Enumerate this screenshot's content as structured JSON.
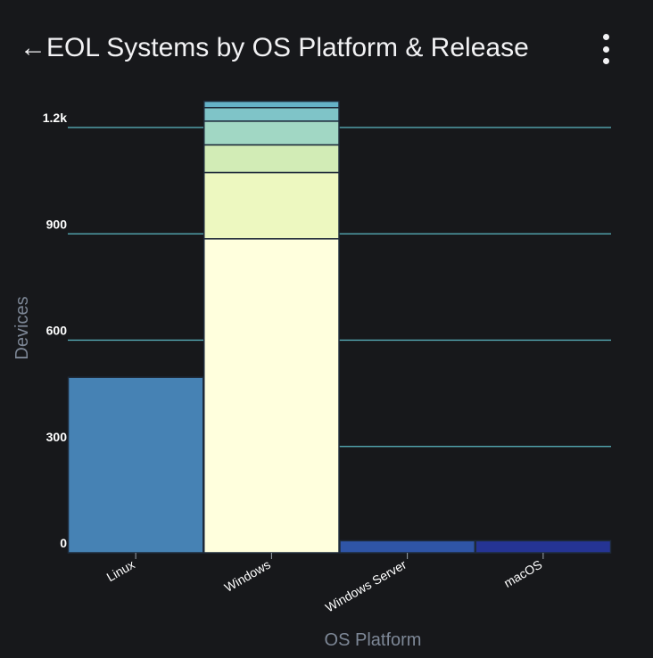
{
  "header": {
    "back_icon": "arrow-left-icon",
    "title": "EOL Systems by OS Platform & Release",
    "menu_icon": "more-vertical-icon"
  },
  "colors": {
    "background": "#17181b",
    "gridline": "#5bb8c4",
    "bar_outline": "#1e2a3a"
  },
  "chart_data": {
    "type": "bar",
    "stacked": true,
    "title": "",
    "xlabel": "OS Platform",
    "ylabel": "Devices",
    "categories": [
      "Linux",
      "Windows",
      "Windows Server",
      "macOS"
    ],
    "ylim": [
      0,
      1280
    ],
    "yticks": [
      0,
      300,
      600,
      900,
      1200
    ],
    "ytick_labels": [
      "0",
      "300",
      "600",
      "900",
      "1.2k"
    ],
    "grid": true,
    "stacks": [
      {
        "category": "Linux",
        "segments": [
          {
            "value": 495,
            "color": "#4682b4"
          }
        ]
      },
      {
        "category": "Windows",
        "segments": [
          {
            "value": 886,
            "color": "#ffffdd"
          },
          {
            "value": 187,
            "color": "#edf8c0"
          },
          {
            "value": 78,
            "color": "#d2ecb6"
          },
          {
            "value": 67,
            "color": "#a1d7c4"
          },
          {
            "value": 38,
            "color": "#7fc4c8"
          },
          {
            "value": 18,
            "color": "#65b2c8"
          }
        ]
      },
      {
        "category": "Windows Server",
        "segments": [
          {
            "value": 34,
            "color": "#2f55a6"
          }
        ]
      },
      {
        "category": "macOS",
        "segments": [
          {
            "value": 34,
            "color": "#253494"
          }
        ]
      }
    ]
  }
}
